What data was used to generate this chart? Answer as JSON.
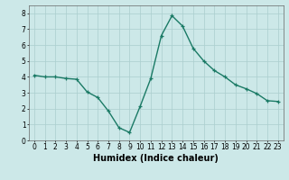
{
  "x": [
    0,
    1,
    2,
    3,
    4,
    5,
    6,
    7,
    8,
    9,
    10,
    11,
    12,
    13,
    14,
    15,
    16,
    17,
    18,
    19,
    20,
    21,
    22,
    23
  ],
  "y": [
    4.1,
    4.0,
    4.0,
    3.9,
    3.85,
    3.05,
    2.7,
    1.85,
    0.8,
    0.5,
    2.15,
    3.9,
    6.6,
    7.85,
    7.2,
    5.8,
    5.0,
    4.4,
    4.0,
    3.5,
    3.25,
    2.95,
    2.5,
    2.45
  ],
  "line_color": "#1a7a65",
  "marker": "+",
  "marker_size": 3,
  "line_width": 1.0,
  "xlabel": "Humidex (Indice chaleur)",
  "xlabel_fontsize": 7,
  "xlim": [
    -0.5,
    23.5
  ],
  "ylim": [
    0,
    8.5
  ],
  "xticks": [
    0,
    1,
    2,
    3,
    4,
    5,
    6,
    7,
    8,
    9,
    10,
    11,
    12,
    13,
    14,
    15,
    16,
    17,
    18,
    19,
    20,
    21,
    22,
    23
  ],
  "yticks": [
    0,
    1,
    2,
    3,
    4,
    5,
    6,
    7,
    8
  ],
  "background_color": "#cce8e8",
  "grid_color": "#aacece",
  "tick_fontsize": 5.5
}
